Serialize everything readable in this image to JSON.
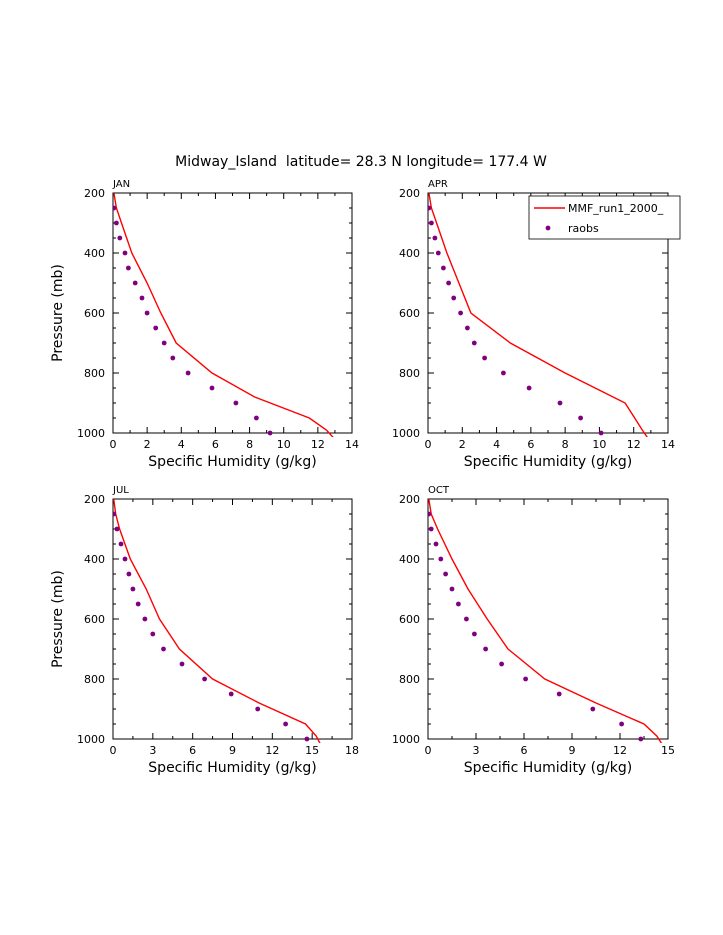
{
  "title": "Midway_Island  latitude= 28.3 N longitude= 177.4 W",
  "colors": {
    "model": "#ff0000",
    "obs": "#800080",
    "axis": "#000000"
  },
  "legend": {
    "model_label": "MMF_run1_2000_",
    "obs_label": "raobs",
    "placement": "top-right of APR panel"
  },
  "chart_data": [
    {
      "type": "line",
      "panel": "JAN",
      "xlabel": "Specific Humidity (g/kg)",
      "ylabel": "Pressure (mb)",
      "xlim": [
        0,
        14
      ],
      "ylim": [
        1000,
        200
      ],
      "xticks": [
        0,
        2,
        4,
        6,
        8,
        10,
        12,
        14
      ],
      "yticks": [
        200,
        400,
        600,
        800,
        1000
      ],
      "series": [
        {
          "name": "MMF_run1_2000_",
          "style": "line",
          "x": [
            0.05,
            0.2,
            0.5,
            1.1,
            2.0,
            2.8,
            3.7,
            5.8,
            8.3,
            11.5,
            12.5,
            12.9
          ],
          "y": [
            200,
            250,
            300,
            400,
            500,
            600,
            700,
            800,
            880,
            950,
            990,
            1015
          ]
        },
        {
          "name": "raobs",
          "style": "points",
          "x": [
            0.05,
            0.2,
            0.4,
            0.7,
            0.9,
            1.3,
            1.7,
            2.0,
            2.5,
            3.0,
            3.5,
            4.4,
            5.8,
            7.2,
            8.4,
            9.2
          ],
          "y": [
            250,
            300,
            350,
            400,
            450,
            500,
            550,
            600,
            650,
            700,
            750,
            800,
            850,
            900,
            950,
            1000
          ]
        }
      ]
    },
    {
      "type": "line",
      "panel": "APR",
      "xlabel": "Specific Humidity (g/kg)",
      "ylabel": "",
      "xlim": [
        0,
        14
      ],
      "ylim": [
        1000,
        200
      ],
      "xticks": [
        0,
        2,
        4,
        6,
        8,
        10,
        12,
        14
      ],
      "yticks": [
        200,
        400,
        600,
        800,
        1000
      ],
      "series": [
        {
          "name": "MMF_run1_2000_",
          "style": "line",
          "x": [
            0.05,
            0.2,
            0.5,
            1.1,
            1.8,
            2.5,
            4.8,
            8.0,
            11.5,
            12.5,
            12.8
          ],
          "y": [
            200,
            250,
            300,
            400,
            500,
            600,
            700,
            800,
            900,
            990,
            1015
          ]
        },
        {
          "name": "raobs",
          "style": "points",
          "x": [
            0.05,
            0.2,
            0.4,
            0.6,
            0.9,
            1.2,
            1.5,
            1.9,
            2.3,
            2.7,
            3.3,
            4.4,
            5.9,
            7.7,
            8.9,
            10.1
          ],
          "y": [
            250,
            300,
            350,
            400,
            450,
            500,
            550,
            600,
            650,
            700,
            750,
            800,
            850,
            900,
            950,
            1000
          ]
        }
      ]
    },
    {
      "type": "line",
      "panel": "JUL",
      "xlabel": "Specific Humidity (g/kg)",
      "ylabel": "Pressure (mb)",
      "xlim": [
        0,
        18
      ],
      "ylim": [
        1000,
        200
      ],
      "xticks": [
        0,
        3,
        6,
        9,
        12,
        15,
        18
      ],
      "yticks": [
        200,
        400,
        600,
        800,
        1000
      ],
      "series": [
        {
          "name": "MMF_run1_2000_",
          "style": "line",
          "x": [
            0.05,
            0.2,
            0.5,
            1.3,
            2.5,
            3.5,
            5.0,
            7.5,
            11.0,
            14.5,
            15.3,
            15.6
          ],
          "y": [
            200,
            250,
            300,
            400,
            500,
            600,
            700,
            800,
            880,
            950,
            990,
            1015
          ]
        },
        {
          "name": "raobs",
          "style": "points",
          "x": [
            0.05,
            0.3,
            0.6,
            0.9,
            1.2,
            1.5,
            1.9,
            2.4,
            3.0,
            3.8,
            5.2,
            6.9,
            8.9,
            10.9,
            13.0,
            14.6
          ],
          "y": [
            250,
            300,
            350,
            400,
            450,
            500,
            550,
            600,
            650,
            700,
            750,
            800,
            850,
            900,
            950,
            1000
          ]
        }
      ]
    },
    {
      "type": "line",
      "panel": "OCT",
      "xlabel": "Specific Humidity (g/kg)",
      "ylabel": "",
      "xlim": [
        0,
        15
      ],
      "ylim": [
        1000,
        200
      ],
      "xticks": [
        0,
        3,
        6,
        9,
        12,
        15
      ],
      "yticks": [
        200,
        400,
        600,
        800,
        1000
      ],
      "series": [
        {
          "name": "MMF_run1_2000_",
          "style": "line",
          "x": [
            0.05,
            0.2,
            0.6,
            1.5,
            2.5,
            3.7,
            5.0,
            7.3,
            10.5,
            13.5,
            14.3,
            14.6
          ],
          "y": [
            200,
            250,
            300,
            400,
            500,
            600,
            700,
            800,
            880,
            950,
            990,
            1015
          ]
        },
        {
          "name": "raobs",
          "style": "points",
          "x": [
            0.05,
            0.2,
            0.5,
            0.8,
            1.1,
            1.5,
            1.9,
            2.4,
            2.9,
            3.6,
            4.6,
            6.1,
            8.2,
            10.3,
            12.1,
            13.3
          ],
          "y": [
            250,
            300,
            350,
            400,
            450,
            500,
            550,
            600,
            650,
            700,
            750,
            800,
            850,
            900,
            950,
            1000
          ]
        }
      ]
    }
  ]
}
